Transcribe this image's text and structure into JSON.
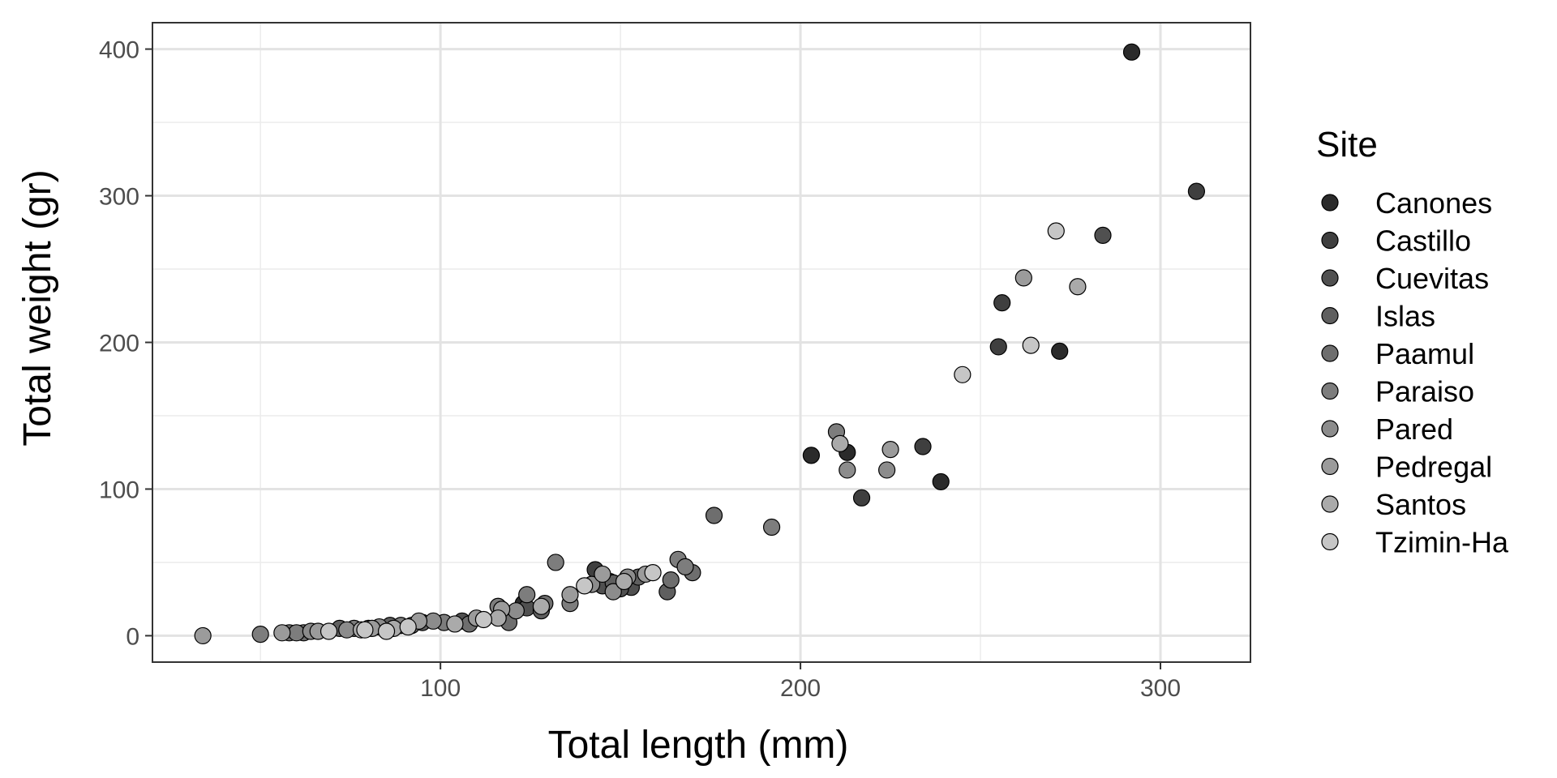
{
  "chart_data": {
    "type": "scatter",
    "xlabel": "Total length (mm)",
    "ylabel": "Total weight (gr)",
    "xlim": [
      20,
      325
    ],
    "ylim": [
      -18,
      418
    ],
    "x_ticks": [
      100,
      200,
      300
    ],
    "y_ticks": [
      0,
      100,
      200,
      300,
      400
    ],
    "x_tick_labels": [
      "100",
      "200",
      "300"
    ],
    "y_tick_labels": [
      "0",
      "100",
      "200",
      "300",
      "400"
    ],
    "grid": true,
    "legend": {
      "title": "Site",
      "position": "right",
      "entries": [
        "Canones",
        "Castillo",
        "Cuevitas",
        "Islas",
        "Paamul",
        "Paraiso",
        "Pared",
        "Pedregal",
        "Santos",
        "Tzimin-Ha"
      ]
    },
    "series": [
      {
        "name": "Canones",
        "color": "#2b2b2b",
        "points": [
          [
            292,
            398
          ],
          [
            272,
            194
          ],
          [
            203,
            123
          ],
          [
            213,
            125
          ],
          [
            239,
            105
          ],
          [
            123,
            22
          ]
        ]
      },
      {
        "name": "Castillo",
        "color": "#3f3f3f",
        "points": [
          [
            256,
            227
          ],
          [
            255,
            197
          ],
          [
            234,
            129
          ],
          [
            217,
            94
          ],
          [
            310,
            303
          ],
          [
            147,
            37
          ],
          [
            143,
            45
          ]
        ]
      },
      {
        "name": "Cuevitas",
        "color": "#505050",
        "points": [
          [
            284,
            273
          ],
          [
            145,
            34
          ],
          [
            153,
            33
          ],
          [
            150,
            32
          ],
          [
            106,
            10
          ],
          [
            124,
            19
          ]
        ]
      },
      {
        "name": "Islas",
        "color": "#5f5f5f",
        "points": [
          [
            155,
            40
          ],
          [
            163,
            30
          ],
          [
            128,
            17
          ],
          [
            86,
            7
          ],
          [
            72,
            5
          ],
          [
            148,
            36
          ],
          [
            95,
            9
          ]
        ]
      },
      {
        "name": "Paamul",
        "color": "#6e6e6e",
        "points": [
          [
            176,
            82
          ],
          [
            170,
            43
          ],
          [
            164,
            38
          ],
          [
            129,
            22
          ],
          [
            119,
            9
          ],
          [
            92,
            7
          ],
          [
            62,
            2
          ],
          [
            58,
            2
          ],
          [
            80,
            5
          ],
          [
            108,
            8
          ]
        ]
      },
      {
        "name": "Paraiso",
        "color": "#7d7d7d",
        "points": [
          [
            210,
            139
          ],
          [
            192,
            74
          ],
          [
            166,
            52
          ],
          [
            168,
            47
          ],
          [
            132,
            50
          ],
          [
            136,
            22
          ],
          [
            124,
            28
          ],
          [
            116,
            20
          ],
          [
            101,
            9
          ],
          [
            89,
            7
          ],
          [
            76,
            5
          ],
          [
            60,
            2
          ],
          [
            50,
            1
          ]
        ]
      },
      {
        "name": "Pared",
        "color": "#8c8c8c",
        "points": [
          [
            213,
            113
          ],
          [
            224,
            113
          ],
          [
            142,
            35
          ],
          [
            148,
            30
          ],
          [
            152,
            40
          ],
          [
            121,
            17
          ],
          [
            98,
            10
          ],
          [
            83,
            6
          ],
          [
            64,
            3
          ],
          [
            74,
            4
          ]
        ]
      },
      {
        "name": "Pedregal",
        "color": "#9b9b9b",
        "points": [
          [
            262,
            244
          ],
          [
            225,
            127
          ],
          [
            157,
            42
          ],
          [
            145,
            42
          ],
          [
            136,
            28
          ],
          [
            117,
            18
          ],
          [
            110,
            12
          ],
          [
            94,
            10
          ],
          [
            81,
            5
          ],
          [
            66,
            3
          ],
          [
            56,
            2
          ],
          [
            34,
            0
          ]
        ]
      },
      {
        "name": "Santos",
        "color": "#aaaaaa",
        "points": [
          [
            277,
            238
          ],
          [
            211,
            131
          ],
          [
            151,
            37
          ],
          [
            128,
            20
          ],
          [
            116,
            12
          ],
          [
            104,
            8
          ],
          [
            87,
            5
          ],
          [
            78,
            4
          ]
        ]
      },
      {
        "name": "Tzimin-Ha",
        "color": "#c6c6c6",
        "points": [
          [
            271,
            276
          ],
          [
            264,
            198
          ],
          [
            245,
            178
          ],
          [
            159,
            43
          ],
          [
            140,
            34
          ],
          [
            112,
            11
          ],
          [
            91,
            6
          ],
          [
            79,
            4
          ],
          [
            69,
            3
          ],
          [
            85,
            3
          ]
        ]
      }
    ]
  }
}
